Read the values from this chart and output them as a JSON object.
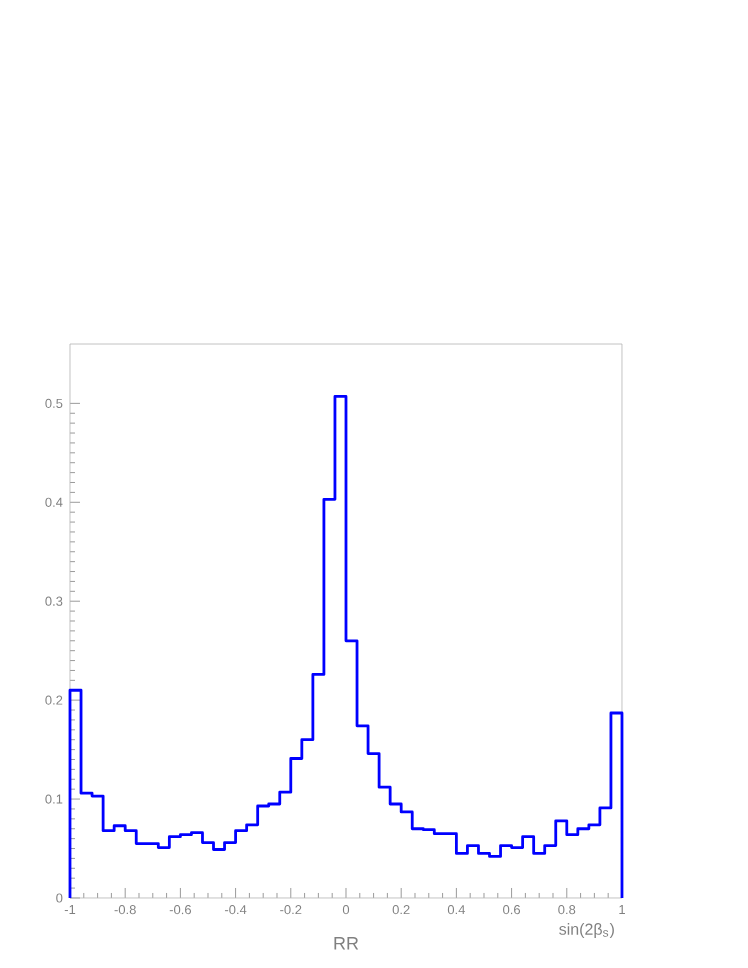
{
  "chart_data": {
    "type": "histogram",
    "xlabel": "sin(2β$_{s}$)",
    "annotations": [
      "RR"
    ],
    "color": "#0000ff",
    "bins": [
      -1,
      -0.96,
      -0.92,
      -0.88,
      -0.84,
      -0.8,
      -0.76,
      -0.72,
      -0.68,
      -0.64,
      -0.6,
      -0.56,
      -0.52,
      -0.48,
      -0.44,
      -0.4,
      -0.36,
      -0.32,
      -0.28,
      -0.24,
      -0.2,
      -0.16,
      -0.12,
      -0.08,
      -0.04,
      0,
      0.04,
      0.08,
      0.12,
      0.16,
      0.2,
      0.24,
      0.28,
      0.32,
      0.36,
      0.4,
      0.44,
      0.48,
      0.52,
      0.56,
      0.6,
      0.64,
      0.68,
      0.72,
      0.76,
      0.8,
      0.84,
      0.88,
      0.92,
      0.96,
      1
    ],
    "values": [
      0.21,
      0.106,
      0.103,
      0.068,
      0.073,
      0.068,
      0.055,
      0.055,
      0.051,
      0.062,
      0.064,
      0.066,
      0.056,
      0.049,
      0.056,
      0.068,
      0.074,
      0.093,
      0.095,
      0.107,
      0.141,
      0.16,
      0.226,
      0.403,
      0.507,
      0.26,
      0.174,
      0.146,
      0.112,
      0.095,
      0.087,
      0.07,
      0.069,
      0.065,
      0.065,
      0.045,
      0.053,
      0.045,
      0.042,
      0.053,
      0.051,
      0.062,
      0.045,
      0.053,
      0.078,
      0.064,
      0.07,
      0.074,
      0.091,
      0.187
    ],
    "xlim": [
      -1,
      1
    ],
    "ylim": [
      0,
      0.56
    ],
    "xticks": [
      {
        "value": -1,
        "label": "-1"
      },
      {
        "value": -0.8,
        "label": "-0.8"
      },
      {
        "value": -0.6,
        "label": "-0.6"
      },
      {
        "value": -0.4,
        "label": "-0.4"
      },
      {
        "value": -0.2,
        "label": "-0.2"
      },
      0,
      0.2,
      0.4,
      0.6,
      0.8,
      1
    ],
    "yticks": [
      0,
      0.1,
      0.2,
      0.3,
      0.4,
      0.5
    ]
  }
}
